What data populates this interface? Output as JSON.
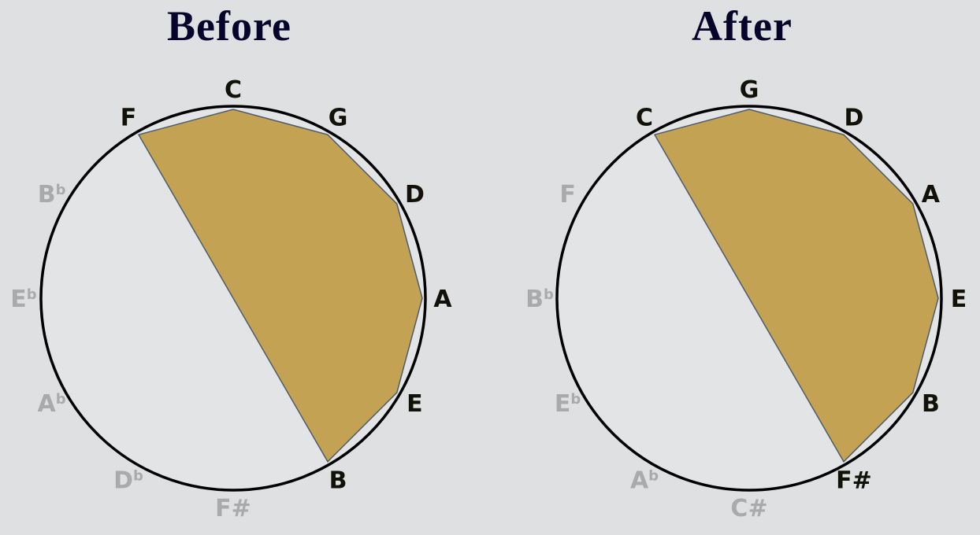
{
  "panels": [
    {
      "title": "Before",
      "notes": [
        {
          "label": "C",
          "accidental": "",
          "active": true
        },
        {
          "label": "G",
          "accidental": "",
          "active": true
        },
        {
          "label": "D",
          "accidental": "",
          "active": true
        },
        {
          "label": "A",
          "accidental": "",
          "active": true
        },
        {
          "label": "E",
          "accidental": "",
          "active": true
        },
        {
          "label": "B",
          "accidental": "",
          "active": true
        },
        {
          "label": "F",
          "accidental": "#",
          "active": false
        },
        {
          "label": "D",
          "accidental": "b",
          "active": false
        },
        {
          "label": "A",
          "accidental": "b",
          "active": false
        },
        {
          "label": "E",
          "accidental": "b",
          "active": false
        },
        {
          "label": "B",
          "accidental": "b",
          "active": false
        },
        {
          "label": "F",
          "accidental": "",
          "active": true
        }
      ]
    },
    {
      "title": "After",
      "notes": [
        {
          "label": "G",
          "accidental": "",
          "active": true
        },
        {
          "label": "D",
          "accidental": "",
          "active": true
        },
        {
          "label": "A",
          "accidental": "",
          "active": true
        },
        {
          "label": "E",
          "accidental": "",
          "active": true
        },
        {
          "label": "B",
          "accidental": "",
          "active": true
        },
        {
          "label": "F",
          "accidental": "#",
          "active": true
        },
        {
          "label": "C",
          "accidental": "#",
          "active": false
        },
        {
          "label": "A",
          "accidental": "b",
          "active": false
        },
        {
          "label": "E",
          "accidental": "b",
          "active": false
        },
        {
          "label": "B",
          "accidental": "b",
          "active": false
        },
        {
          "label": "F",
          "accidental": "",
          "active": false
        },
        {
          "label": "C",
          "accidental": "",
          "active": true
        }
      ]
    }
  ],
  "colors": {
    "background": "#dfe0e2",
    "fill": "#c4a253",
    "polygon_stroke": "#4d5c6c",
    "circle": "#000000",
    "active_label": "#111108",
    "inactive_label": "#a9aaac",
    "title": "#07042c"
  }
}
